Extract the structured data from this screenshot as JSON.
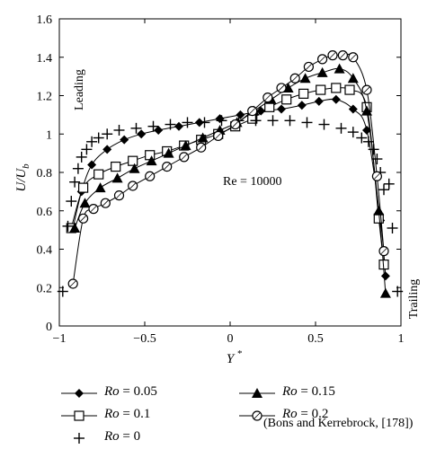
{
  "chart_data": {
    "type": "line",
    "xlabel": "Y*",
    "ylabel": "U/U_b",
    "xlim": [
      -1,
      1
    ],
    "ylim": [
      0,
      1.6
    ],
    "x_ticks": [
      "−1",
      "−0.5",
      "0",
      "0.5",
      "1"
    ],
    "y_ticks": [
      "0",
      "0.2",
      "0.4",
      "0.6",
      "0.8",
      "1",
      "1.2",
      "1.4",
      "1.6"
    ],
    "grid": false,
    "annotations": {
      "reynolds": "Re = 10000",
      "leading": "Leading",
      "trailing": "Trailing"
    },
    "source_note": "(Bons and Kerrebrock, [178])",
    "series": [
      {
        "name": "Ro = 0.05",
        "marker": "filled-diamond",
        "points": [
          [
            -0.92,
            0.51
          ],
          [
            -0.87,
            0.7
          ],
          [
            -0.81,
            0.84
          ],
          [
            -0.72,
            0.92
          ],
          [
            -0.62,
            0.97
          ],
          [
            -0.52,
            1.0
          ],
          [
            -0.42,
            1.02
          ],
          [
            -0.3,
            1.04
          ],
          [
            -0.18,
            1.06
          ],
          [
            -0.06,
            1.08
          ],
          [
            0.06,
            1.1
          ],
          [
            0.18,
            1.12
          ],
          [
            0.3,
            1.13
          ],
          [
            0.42,
            1.15
          ],
          [
            0.52,
            1.17
          ],
          [
            0.62,
            1.18
          ],
          [
            0.72,
            1.13
          ],
          [
            0.8,
            1.02
          ],
          [
            0.88,
            0.55
          ],
          [
            0.91,
            0.26
          ]
        ]
      },
      {
        "name": "Ro = 0.1",
        "marker": "open-square",
        "points": [
          [
            -0.93,
            0.51
          ],
          [
            -0.86,
            0.72
          ],
          [
            -0.77,
            0.79
          ],
          [
            -0.67,
            0.83
          ],
          [
            -0.57,
            0.86
          ],
          [
            -0.47,
            0.89
          ],
          [
            -0.37,
            0.91
          ],
          [
            -0.27,
            0.94
          ],
          [
            -0.17,
            0.97
          ],
          [
            -0.07,
            1.0
          ],
          [
            0.03,
            1.04
          ],
          [
            0.13,
            1.08
          ],
          [
            0.23,
            1.14
          ],
          [
            0.33,
            1.18
          ],
          [
            0.43,
            1.21
          ],
          [
            0.53,
            1.23
          ],
          [
            0.62,
            1.24
          ],
          [
            0.7,
            1.23
          ],
          [
            0.8,
            1.14
          ],
          [
            0.87,
            0.56
          ],
          [
            0.9,
            0.32
          ]
        ]
      },
      {
        "name": "Ro = 0",
        "marker": "plus",
        "points": [
          [
            -0.98,
            0.18
          ],
          [
            -0.95,
            0.52
          ],
          [
            -0.93,
            0.65
          ],
          [
            -0.91,
            0.75
          ],
          [
            -0.89,
            0.82
          ],
          [
            -0.87,
            0.88
          ],
          [
            -0.84,
            0.92
          ],
          [
            -0.81,
            0.96
          ],
          [
            -0.77,
            0.98
          ],
          [
            -0.72,
            1.0
          ],
          [
            -0.65,
            1.02
          ],
          [
            -0.55,
            1.03
          ],
          [
            -0.45,
            1.04
          ],
          [
            -0.35,
            1.05
          ],
          [
            -0.25,
            1.06
          ],
          [
            -0.15,
            1.06
          ],
          [
            -0.05,
            1.07
          ],
          [
            0.05,
            1.07
          ],
          [
            0.15,
            1.07
          ],
          [
            0.25,
            1.07
          ],
          [
            0.35,
            1.07
          ],
          [
            0.45,
            1.06
          ],
          [
            0.55,
            1.05
          ],
          [
            0.65,
            1.03
          ],
          [
            0.72,
            1.01
          ],
          [
            0.77,
            0.98
          ],
          [
            0.81,
            0.96
          ],
          [
            0.84,
            0.92
          ],
          [
            0.86,
            0.87
          ],
          [
            0.88,
            0.8
          ],
          [
            0.9,
            0.71
          ],
          [
            0.93,
            0.74
          ],
          [
            0.95,
            0.51
          ],
          [
            0.98,
            0.18
          ]
        ]
      },
      {
        "name": "Ro = 0.15",
        "marker": "filled-triangle",
        "points": [
          [
            -0.91,
            0.51
          ],
          [
            -0.85,
            0.64
          ],
          [
            -0.76,
            0.72
          ],
          [
            -0.66,
            0.77
          ],
          [
            -0.56,
            0.82
          ],
          [
            -0.46,
            0.86
          ],
          [
            -0.36,
            0.9
          ],
          [
            -0.26,
            0.94
          ],
          [
            -0.16,
            0.98
          ],
          [
            -0.06,
            1.02
          ],
          [
            0.04,
            1.06
          ],
          [
            0.14,
            1.12
          ],
          [
            0.24,
            1.18
          ],
          [
            0.34,
            1.24
          ],
          [
            0.44,
            1.29
          ],
          [
            0.54,
            1.32
          ],
          [
            0.64,
            1.34
          ],
          [
            0.72,
            1.29
          ],
          [
            0.8,
            1.12
          ],
          [
            0.87,
            0.6
          ],
          [
            0.91,
            0.17
          ]
        ]
      },
      {
        "name": "Ro = 0.2",
        "marker": "open-circle",
        "points": [
          [
            -0.92,
            0.22
          ],
          [
            -0.86,
            0.56
          ],
          [
            -0.8,
            0.61
          ],
          [
            -0.73,
            0.64
          ],
          [
            -0.65,
            0.68
          ],
          [
            -0.57,
            0.73
          ],
          [
            -0.47,
            0.78
          ],
          [
            -0.37,
            0.83
          ],
          [
            -0.27,
            0.88
          ],
          [
            -0.17,
            0.93
          ],
          [
            -0.07,
            0.99
          ],
          [
            0.03,
            1.05
          ],
          [
            0.13,
            1.12
          ],
          [
            0.22,
            1.19
          ],
          [
            0.3,
            1.24
          ],
          [
            0.38,
            1.29
          ],
          [
            0.46,
            1.35
          ],
          [
            0.54,
            1.39
          ],
          [
            0.6,
            1.41
          ],
          [
            0.66,
            1.41
          ],
          [
            0.72,
            1.4
          ],
          [
            0.8,
            1.23
          ],
          [
            0.86,
            0.78
          ],
          [
            0.9,
            0.39
          ]
        ]
      }
    ]
  },
  "legend": [
    {
      "var": "Ro",
      "value": " = 0.05",
      "marker": "filled-diamond"
    },
    {
      "var": "Ro",
      "value": " = 0.1",
      "marker": "open-square"
    },
    {
      "var": "Ro",
      "value": " = 0",
      "marker": "plus"
    },
    {
      "var": "Ro",
      "value": " = 0.15",
      "marker": "filled-triangle"
    },
    {
      "var": "Ro",
      "value": " = 0.2",
      "marker": "open-circle"
    }
  ]
}
